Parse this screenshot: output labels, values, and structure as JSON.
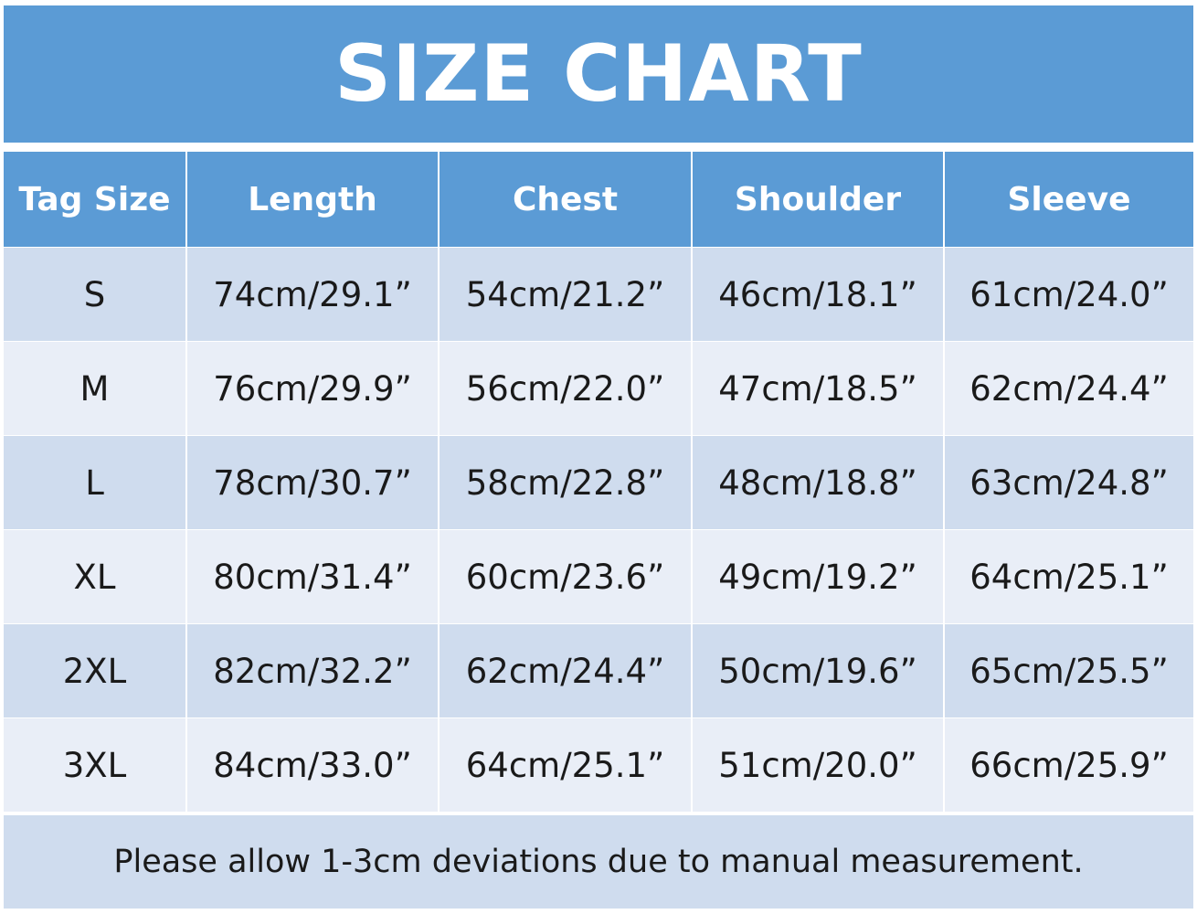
{
  "title": "SIZE CHART",
  "colors": {
    "header_bg": "#5b9bd5",
    "row_dark": "#cfdcee",
    "row_light": "#e9eef7",
    "header_text": "#ffffff",
    "body_text": "#1a1a1a"
  },
  "table": {
    "headers": [
      "Tag Size",
      "Length",
      "Chest",
      "Shoulder",
      "Sleeve"
    ],
    "rows": [
      [
        "S",
        "74cm/29.1”",
        "54cm/21.2”",
        "46cm/18.1”",
        "61cm/24.0”"
      ],
      [
        "M",
        "76cm/29.9”",
        "56cm/22.0”",
        "47cm/18.5”",
        "62cm/24.4”"
      ],
      [
        "L",
        "78cm/30.7”",
        "58cm/22.8”",
        "48cm/18.8”",
        "63cm/24.8”"
      ],
      [
        "XL",
        "80cm/31.4”",
        "60cm/23.6”",
        "49cm/19.2”",
        "64cm/25.1”"
      ],
      [
        "2XL",
        "82cm/32.2”",
        "62cm/24.4”",
        "50cm/19.6”",
        "65cm/25.5”"
      ],
      [
        "3XL",
        "84cm/33.0”",
        "64cm/25.1”",
        "51cm/20.0”",
        "66cm/25.9”"
      ]
    ]
  },
  "note": "Please allow 1-3cm deviations due to manual measurement."
}
